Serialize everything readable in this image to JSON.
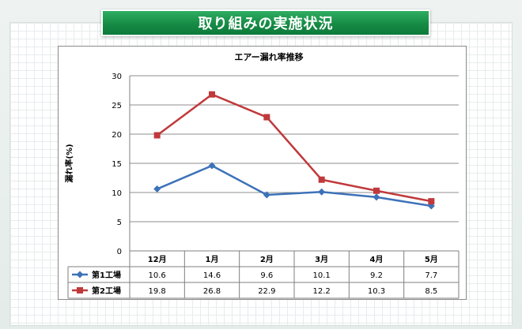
{
  "banner": {
    "title": "取り組みの実施状況"
  },
  "chart_data": {
    "type": "line",
    "title": "エアー漏れ率推移",
    "ylabel": "漏れ率(%)",
    "xlabel": "",
    "ylim": [
      0,
      30
    ],
    "yticks": [
      "0",
      "5",
      "10",
      "15",
      "20",
      "25",
      "30"
    ],
    "categories": [
      "12月",
      "1月",
      "2月",
      "3月",
      "4月",
      "5月"
    ],
    "grid": true,
    "legend": "data-table-left",
    "series": [
      {
        "name": "第1工場",
        "color": "#3d72b8",
        "marker": "diamond",
        "values": [
          10.6,
          14.6,
          9.6,
          10.1,
          9.2,
          7.7
        ],
        "labels": [
          "10.6",
          "14.6",
          "9.6",
          "10.1",
          "9.2",
          "7.7"
        ]
      },
      {
        "name": "第2工場",
        "color": "#c0393b",
        "marker": "square",
        "values": [
          19.8,
          26.8,
          22.9,
          12.2,
          10.3,
          8.5
        ],
        "labels": [
          "19.8",
          "26.8",
          "22.9",
          "12.2",
          "10.3",
          "8.5"
        ]
      }
    ]
  }
}
